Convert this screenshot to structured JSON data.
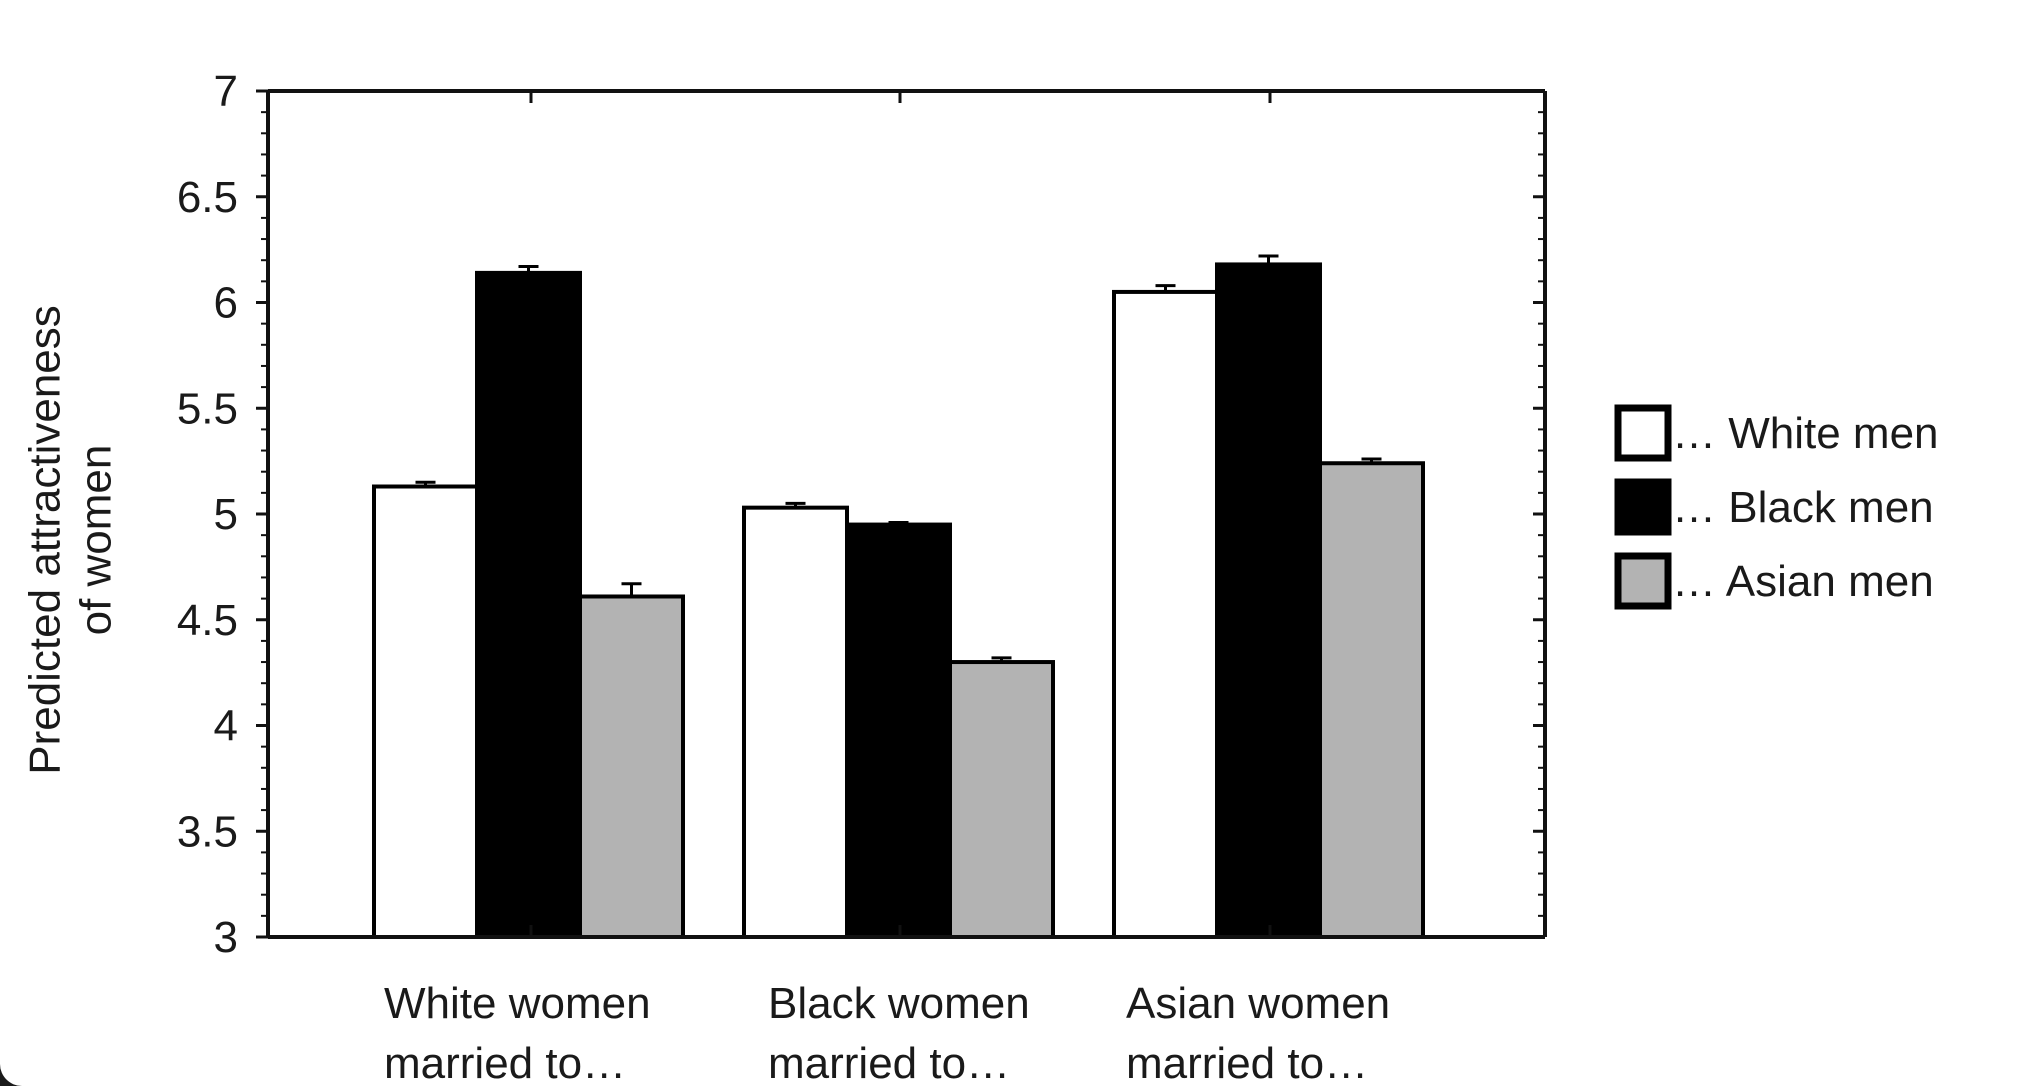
{
  "chart_data": {
    "type": "bar",
    "ylabel_lines": [
      "Predicted attractiveness",
      "of women"
    ],
    "ylim": [
      3,
      7
    ],
    "yticks": [
      "3",
      "3.5",
      "4",
      "4.5",
      "5",
      "5.5",
      "6",
      "6.5",
      "7"
    ],
    "categories": [
      [
        "White women",
        "married to…"
      ],
      [
        "Black women",
        "married to…"
      ],
      [
        "Asian women",
        "married to…"
      ]
    ],
    "series": [
      {
        "name": "… White men",
        "color": "#ffffff",
        "values": [
          5.13,
          5.03,
          6.05
        ],
        "errors": [
          0.02,
          0.02,
          0.03
        ]
      },
      {
        "name": "… Black men",
        "color": "#000000",
        "values": [
          6.14,
          4.95,
          6.18
        ],
        "errors": [
          0.03,
          0.01,
          0.04
        ]
      },
      {
        "name": "… Asian men",
        "color": "#b3b3b3",
        "values": [
          4.61,
          4.3,
          5.24
        ],
        "errors": [
          0.06,
          0.02,
          0.02
        ]
      }
    ],
    "legend_position": "right",
    "grid": false
  }
}
